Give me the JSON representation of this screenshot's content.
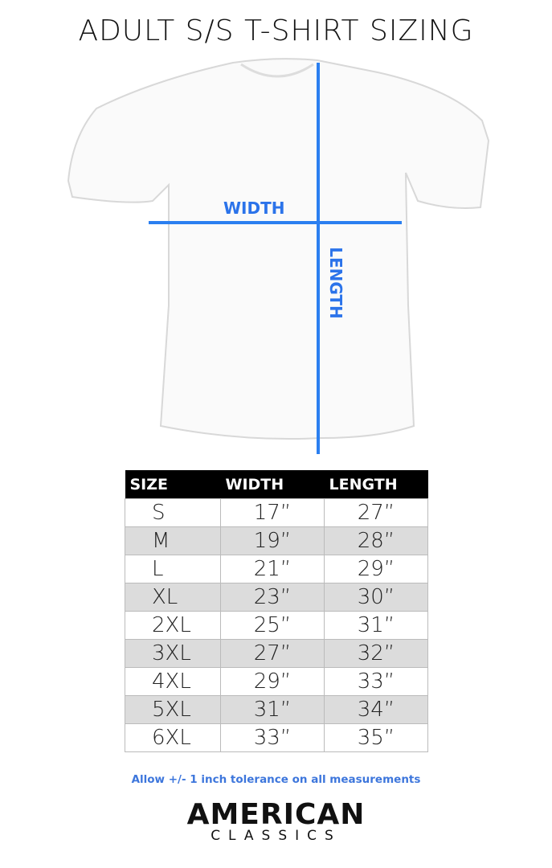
{
  "title": "ADULT S/S T-SHIRT SIZING",
  "diagram": {
    "width_label": "WIDTH",
    "length_label": "LENGTH",
    "line_color": "#2b7ff0"
  },
  "table": {
    "headers": [
      "SIZE",
      "WIDTH",
      "LENGTH"
    ],
    "rows": [
      [
        "S",
        "17”",
        "27”"
      ],
      [
        "M",
        "19”",
        "28”"
      ],
      [
        "L",
        "21”",
        "29”"
      ],
      [
        "XL",
        "23”",
        "30”"
      ],
      [
        "2XL",
        "25”",
        "31”"
      ],
      [
        "3XL",
        "27”",
        "32”"
      ],
      [
        "4XL",
        "29”",
        "33”"
      ],
      [
        "5XL",
        "31”",
        "34”"
      ],
      [
        "6XL",
        "33”",
        "35”"
      ]
    ]
  },
  "note": "Allow +/- 1 inch tolerance on all measurements",
  "logo": {
    "line1": "AMERICAN",
    "line2": "CLASSICS"
  }
}
